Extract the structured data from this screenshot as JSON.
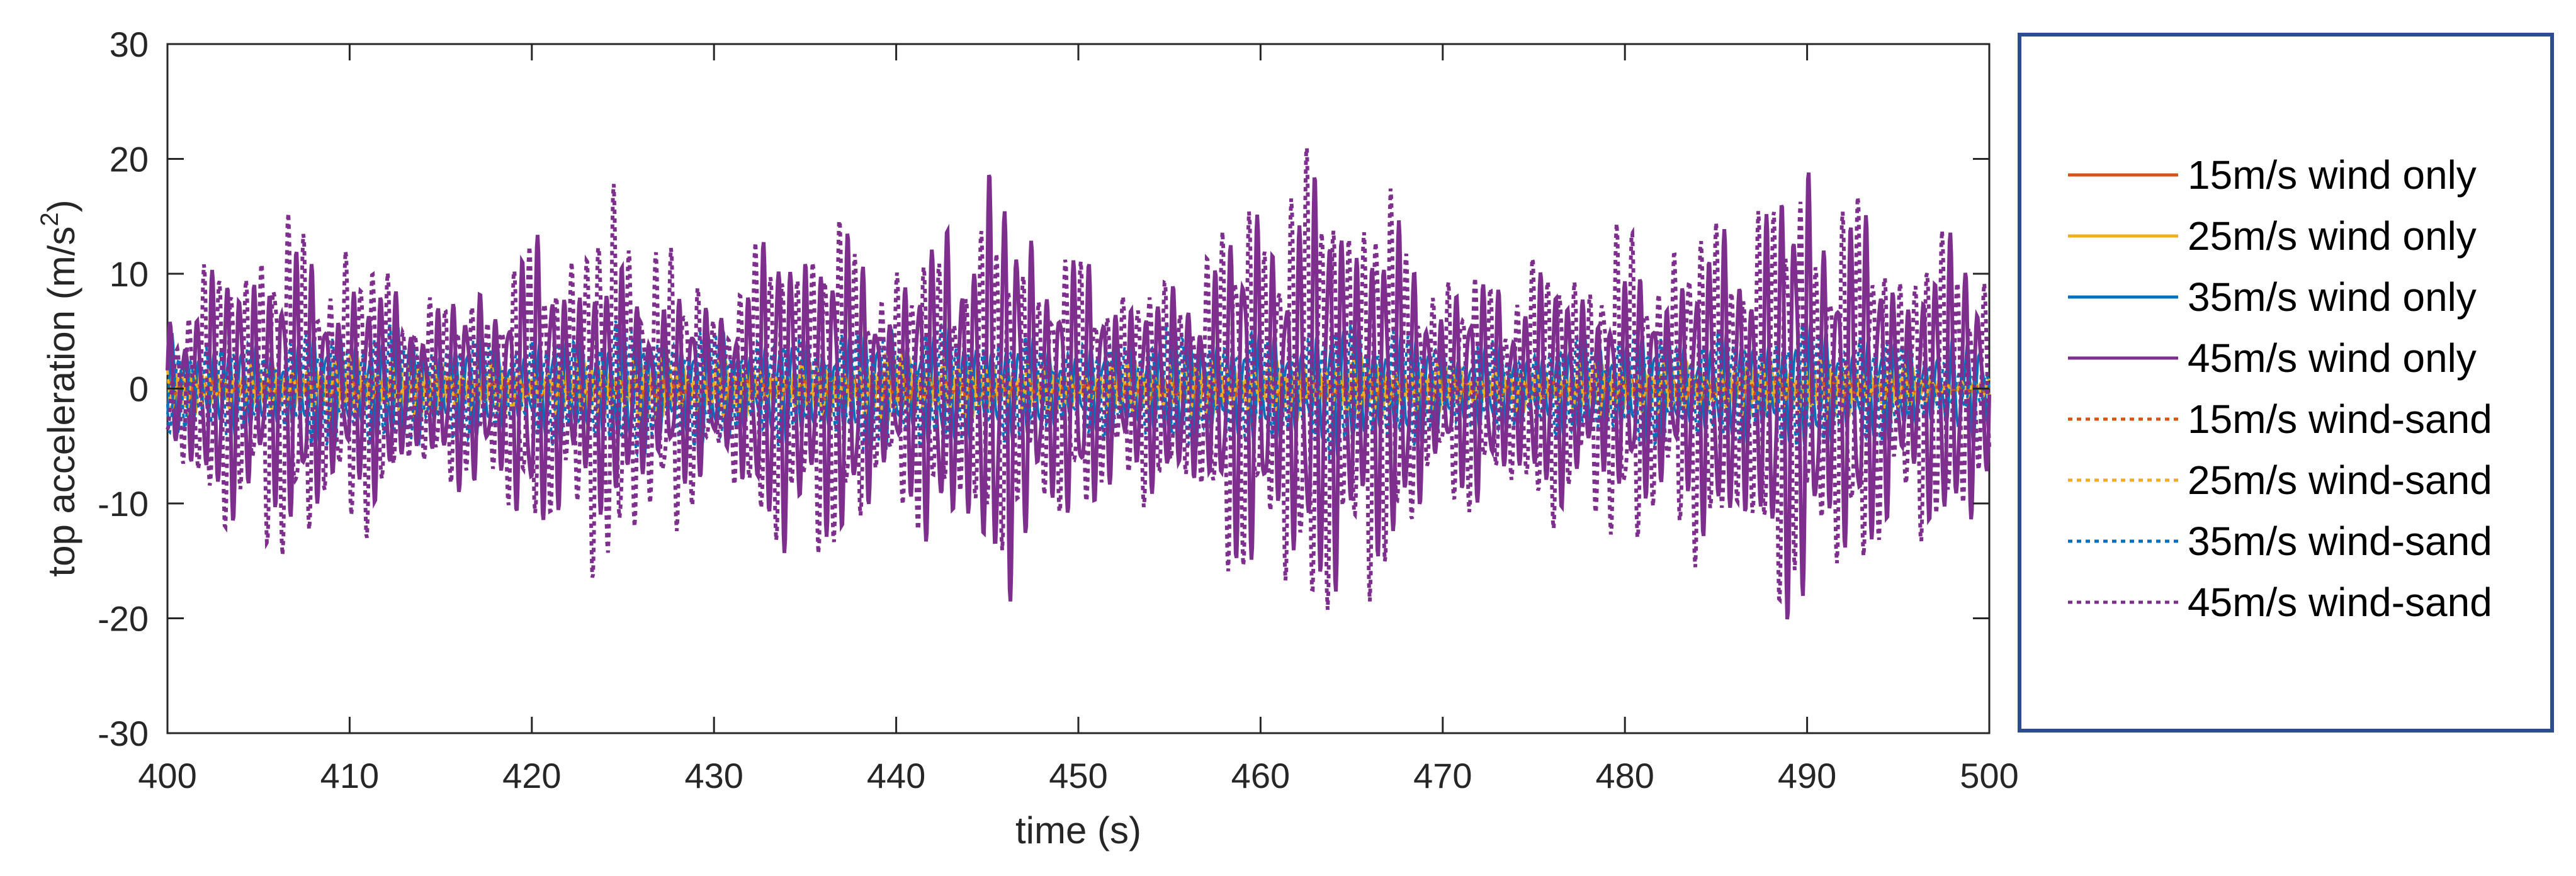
{
  "chart_data": {
    "type": "line",
    "title": "",
    "xlabel": "time (s)",
    "ylabel_main": "top acceleration (m/s",
    "ylabel_sup": "2",
    "ylabel_close": ")",
    "xlim": [
      400,
      500
    ],
    "ylim": [
      -30,
      30
    ],
    "xticks": [
      400,
      410,
      420,
      430,
      440,
      450,
      460,
      470,
      480,
      490,
      500
    ],
    "yticks": [
      30,
      20,
      10,
      0,
      -10,
      -20,
      -30
    ],
    "xtick_labels": [
      "400",
      "410",
      "420",
      "430",
      "440",
      "450",
      "460",
      "470",
      "480",
      "490",
      "500"
    ],
    "ytick_labels": [
      "30",
      "20",
      "10",
      "0",
      "-10",
      "-20",
      "-30"
    ],
    "grid": false,
    "legend_position": "outside-right",
    "x": [
      400,
      405,
      410,
      415,
      420,
      425,
      430,
      435,
      440,
      445,
      450,
      455,
      460,
      465,
      470,
      475,
      480,
      485,
      490,
      495,
      500
    ],
    "series": [
      {
        "name": "15m/s wind only",
        "color": "#D95319",
        "style": "solid",
        "amplitude": 1.5,
        "values": [
          1.0,
          -0.8,
          1.2,
          -1.0,
          0.9,
          -1.2,
          1.1,
          -0.9,
          1.3,
          -1.0,
          0.8,
          -1.1,
          1.0,
          -1.2,
          0.9,
          -0.8,
          1.1,
          -1.0,
          1.2,
          -0.9,
          0.0
        ]
      },
      {
        "name": "25m/s wind only",
        "color": "#EDB120",
        "style": "solid",
        "amplitude": 3.5,
        "values": [
          2.5,
          -2.0,
          3.0,
          -2.5,
          2.2,
          -3.0,
          2.8,
          -2.3,
          3.2,
          -2.6,
          2.0,
          -2.8,
          2.6,
          -3.1,
          2.3,
          -2.0,
          2.7,
          -2.5,
          3.0,
          -2.4,
          0.0
        ]
      },
      {
        "name": "35m/s wind only",
        "color": "#0072BD",
        "style": "solid",
        "amplitude": 7,
        "values": [
          5.0,
          -4.2,
          6.0,
          -5.1,
          4.6,
          -6.2,
          5.5,
          -4.8,
          6.4,
          -5.3,
          4.1,
          -5.8,
          5.2,
          -6.5,
          4.7,
          -4.0,
          5.6,
          -5.0,
          6.1,
          -4.9,
          -5.0
        ]
      },
      {
        "name": "45m/s wind only",
        "color": "#7E2F8E",
        "style": "solid",
        "amplitude": 22.5,
        "values": [
          7.5,
          14.0,
          11.0,
          8.0,
          14.0,
          11.0,
          8.0,
          17.5,
          10.0,
          21.2,
          12.0,
          9.0,
          18.0,
          20.0,
          10.0,
          11.0,
          10.0,
          14.0,
          22.5,
          12.0,
          15.0
        ]
      },
      {
        "name": "15m/s wind-sand",
        "color": "#D95319",
        "style": "dotted",
        "amplitude": 1.5,
        "values": [
          -1.0,
          0.9,
          -1.1,
          1.0,
          -0.9,
          1.2,
          -1.1,
          0.9,
          -1.3,
          1.0,
          -0.8,
          1.1,
          -1.0,
          1.2,
          -0.9,
          0.8,
          -1.1,
          1.0,
          -1.2,
          0.9,
          0.0
        ]
      },
      {
        "name": "25m/s wind-sand",
        "color": "#EDB120",
        "style": "dotted",
        "amplitude": 3.5,
        "values": [
          -2.4,
          2.1,
          -3.0,
          2.6,
          -2.2,
          3.1,
          -2.7,
          2.2,
          -3.3,
          2.5,
          -2.1,
          2.9,
          -2.5,
          3.0,
          -2.2,
          2.1,
          -2.8,
          2.4,
          -3.1,
          2.3,
          0.0
        ]
      },
      {
        "name": "35m/s wind-sand",
        "color": "#0072BD",
        "style": "dotted",
        "amplitude": 7,
        "values": [
          -5.1,
          4.3,
          -6.1,
          5.0,
          -4.7,
          6.3,
          -5.4,
          4.9,
          -6.3,
          5.2,
          -4.2,
          5.9,
          -5.1,
          6.6,
          -4.6,
          4.1,
          -5.5,
          5.1,
          -6.0,
          4.8,
          0.0
        ]
      },
      {
        "name": "45m/s wind-sand",
        "color": "#7E2F8E",
        "style": "dotted",
        "amplitude": 23,
        "values": [
          -7.0,
          -17.0,
          -14.5,
          -8.0,
          -13.0,
          -19.5,
          -9.0,
          -17.5,
          -12.0,
          -15.0,
          -12.0,
          -10.0,
          -20.2,
          -23.0,
          -11.0,
          -12.0,
          -15.5,
          -16.0,
          -20.5,
          -15.0,
          -13.0
        ]
      }
    ]
  }
}
